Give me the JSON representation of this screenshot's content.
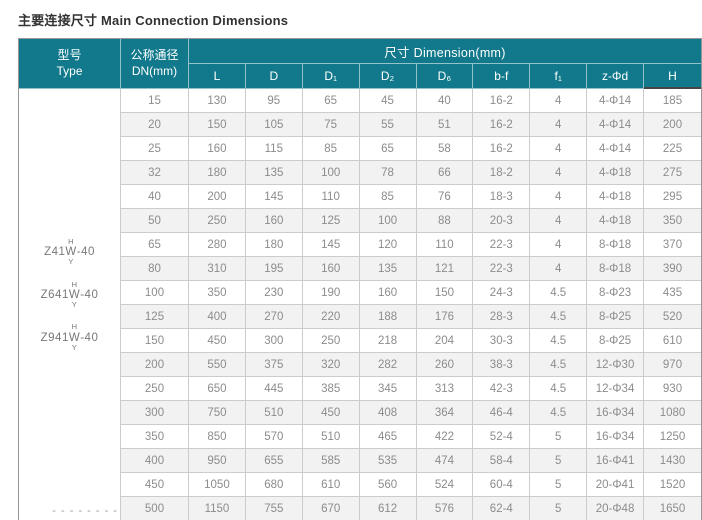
{
  "title": "主要连接尺寸 Main Connection Dimensions",
  "colors": {
    "header_teal": "#11798b",
    "stripe_gray": "#f2f2f2",
    "data_text": "#8c8c8c",
    "border_gray": "#cccccc",
    "title_text": "#323232"
  },
  "table": {
    "header": {
      "type_cn": "型号",
      "type_en": "Type",
      "dn_cn": "公称通径",
      "dn_en": "DN(mm)",
      "dimension_group": "尺寸 Dimension(mm)",
      "columns": [
        "L",
        "D",
        "D₁",
        "D₂",
        "D₆",
        "b-f",
        "f₁",
        "z-Φd",
        "H"
      ]
    },
    "type_models": [
      {
        "prefix": "Z41",
        "stack_top": "H",
        "stack_mid": "W",
        "stack_bottom": "Y",
        "suffix": "-40"
      },
      {
        "prefix": "Z641",
        "stack_top": "H",
        "stack_mid": "W",
        "stack_bottom": "Y",
        "suffix": "-40"
      },
      {
        "prefix": "Z941",
        "stack_top": "H",
        "stack_mid": "W",
        "stack_bottom": "Y",
        "suffix": "-40"
      }
    ],
    "type_note": "- - - - - - - -",
    "rows": [
      [
        "15",
        "130",
        "95",
        "65",
        "45",
        "40",
        "16-2",
        "4",
        "4-Φ14",
        "185"
      ],
      [
        "20",
        "150",
        "105",
        "75",
        "55",
        "51",
        "16-2",
        "4",
        "4-Φ14",
        "200"
      ],
      [
        "25",
        "160",
        "115",
        "85",
        "65",
        "58",
        "16-2",
        "4",
        "4-Φ14",
        "225"
      ],
      [
        "32",
        "180",
        "135",
        "100",
        "78",
        "66",
        "18-2",
        "4",
        "4-Φ18",
        "275"
      ],
      [
        "40",
        "200",
        "145",
        "110",
        "85",
        "76",
        "18-3",
        "4",
        "4-Φ18",
        "295"
      ],
      [
        "50",
        "250",
        "160",
        "125",
        "100",
        "88",
        "20-3",
        "4",
        "4-Φ18",
        "350"
      ],
      [
        "65",
        "280",
        "180",
        "145",
        "120",
        "110",
        "22-3",
        "4",
        "8-Φ18",
        "370"
      ],
      [
        "80",
        "310",
        "195",
        "160",
        "135",
        "121",
        "22-3",
        "4",
        "8-Φ18",
        "390"
      ],
      [
        "100",
        "350",
        "230",
        "190",
        "160",
        "150",
        "24-3",
        "4.5",
        "8-Φ23",
        "435"
      ],
      [
        "125",
        "400",
        "270",
        "220",
        "188",
        "176",
        "28-3",
        "4.5",
        "8-Φ25",
        "520"
      ],
      [
        "150",
        "450",
        "300",
        "250",
        "218",
        "204",
        "30-3",
        "4.5",
        "8-Φ25",
        "610"
      ],
      [
        "200",
        "550",
        "375",
        "320",
        "282",
        "260",
        "38-3",
        "4.5",
        "12-Φ30",
        "970"
      ],
      [
        "250",
        "650",
        "445",
        "385",
        "345",
        "313",
        "42-3",
        "4.5",
        "12-Φ34",
        "930"
      ],
      [
        "300",
        "750",
        "510",
        "450",
        "408",
        "364",
        "46-4",
        "4.5",
        "16-Φ34",
        "1080"
      ],
      [
        "350",
        "850",
        "570",
        "510",
        "465",
        "422",
        "52-4",
        "5",
        "16-Φ34",
        "1250"
      ],
      [
        "400",
        "950",
        "655",
        "585",
        "535",
        "474",
        "58-4",
        "5",
        "16-Φ41",
        "1430"
      ],
      [
        "450",
        "1050",
        "680",
        "610",
        "560",
        "524",
        "60-4",
        "5",
        "20-Φ41",
        "1520"
      ],
      [
        "500",
        "1150",
        "755",
        "670",
        "612",
        "576",
        "62-4",
        "5",
        "20-Φ48",
        "1650"
      ]
    ]
  }
}
